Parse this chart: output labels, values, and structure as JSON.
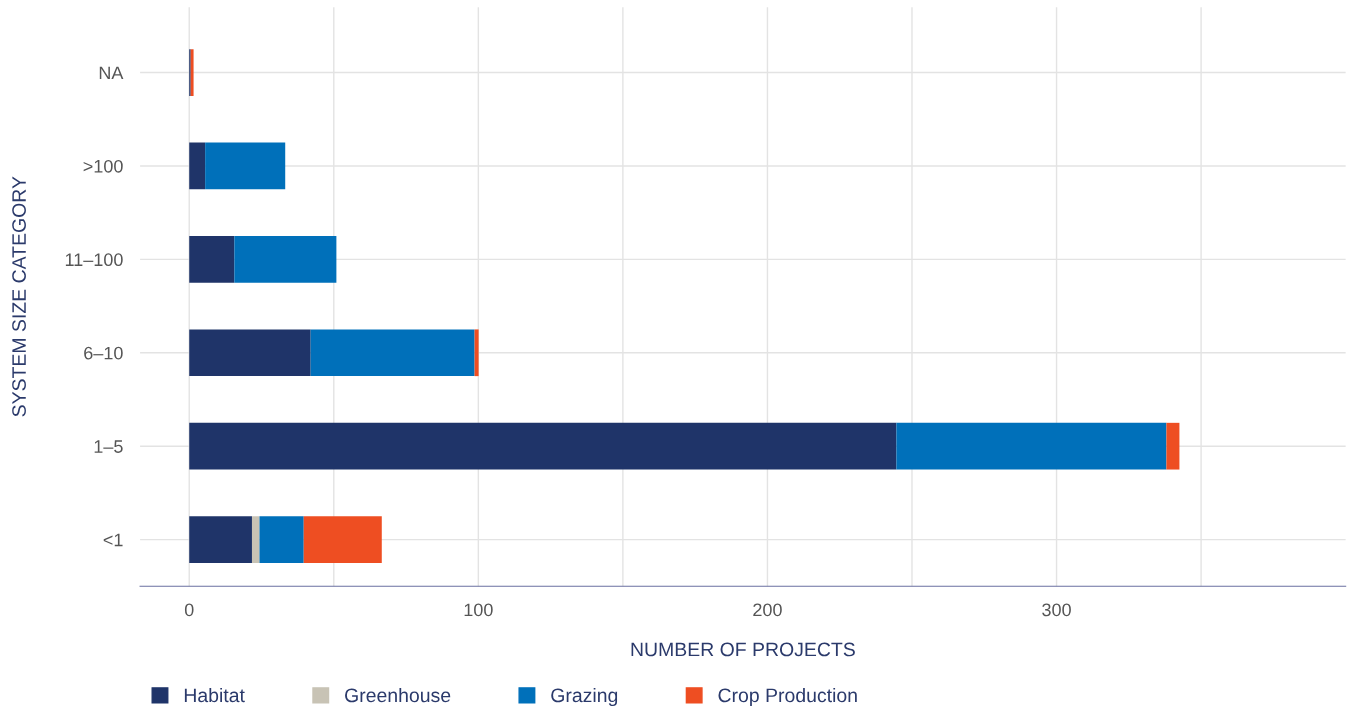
{
  "chart_data": {
    "type": "bar",
    "orientation": "horizontal",
    "stacked": true,
    "xlabel": "NUMBER OF PROJECTS",
    "ylabel": "SYSTEM SIZE CATEGORY",
    "categories": [
      "NA",
      ">100",
      "11–100",
      "6–10",
      "1–5",
      "<1"
    ],
    "series": [
      {
        "name": "Habitat",
        "color": "#1f3469",
        "values": [
          0.5,
          5.5,
          15.6,
          42,
          244.6,
          21.7
        ]
      },
      {
        "name": "Greenhouse",
        "color": "#c8c3b5",
        "values": [
          0,
          0,
          0,
          0,
          0,
          2.6
        ]
      },
      {
        "name": "Grazing",
        "color": "#0070ba",
        "values": [
          0,
          27.7,
          35.3,
          56.7,
          93.4,
          15.3
        ]
      },
      {
        "name": "Crop Production",
        "color": "#ee4e22",
        "values": [
          1,
          0,
          0,
          1.4,
          4.5,
          27
        ]
      }
    ],
    "xlim": [
      -17,
      400
    ],
    "xticks": [
      0,
      {
        "value": 50,
        "label": null
      },
      100,
      {
        "value": 150,
        "label": null
      },
      200,
      {
        "value": 250,
        "label": null
      },
      300,
      {
        "value": 350,
        "label": null
      }
    ],
    "grid": true,
    "legend": "bottom"
  }
}
